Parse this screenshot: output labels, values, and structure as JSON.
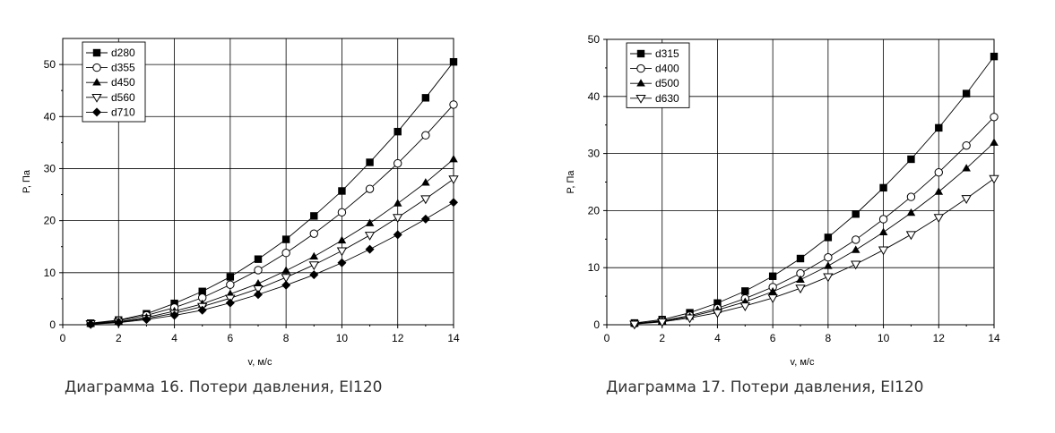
{
  "captions": {
    "chart16": "Диаграмма 16. Потери давления, EI120",
    "chart17": "Диаграмма 17. Потери давления, EI120"
  },
  "colors": {
    "line": "#000000",
    "grid": "#000000",
    "caption": "#333333"
  },
  "chart_data": [
    {
      "type": "line",
      "xlabel": "v, м/с",
      "ylabel": "P, Па",
      "xlim": [
        0,
        14
      ],
      "ylim": [
        0,
        55
      ],
      "xticks": [
        0,
        2,
        4,
        6,
        8,
        10,
        12,
        14
      ],
      "yticks": [
        0,
        10,
        20,
        30,
        40,
        50
      ],
      "grid": true,
      "legend_position": "top-left",
      "x": [
        1,
        2,
        3,
        4,
        5,
        6,
        7,
        8,
        9,
        10,
        11,
        12,
        13,
        14
      ],
      "series": [
        {
          "name": "d280",
          "marker": "square-filled",
          "values": [
            0.3,
            0.9,
            2.1,
            4.1,
            6.4,
            9.2,
            12.6,
            16.4,
            20.9,
            25.7,
            31.2,
            37.1,
            43.6,
            50.5
          ]
        },
        {
          "name": "d355",
          "marker": "circle-open",
          "values": [
            0.2,
            0.8,
            1.8,
            3.3,
            5.2,
            7.7,
            10.5,
            13.8,
            17.5,
            21.6,
            26.1,
            31.0,
            36.4,
            42.3
          ]
        },
        {
          "name": "d450",
          "marker": "triangle-up-filled",
          "values": [
            0.2,
            0.6,
            1.4,
            2.6,
            4.0,
            5.9,
            7.9,
            10.4,
            13.1,
            16.2,
            19.5,
            23.3,
            27.3,
            31.8
          ]
        },
        {
          "name": "d560",
          "marker": "triangle-down-open",
          "values": [
            0.2,
            0.5,
            1.2,
            2.2,
            3.5,
            5.1,
            6.9,
            9.1,
            11.5,
            14.2,
            17.2,
            20.6,
            24.2,
            28.0
          ]
        },
        {
          "name": "d710",
          "marker": "diamond-filled",
          "values": [
            0.1,
            0.4,
            1.0,
            1.8,
            2.8,
            4.2,
            5.8,
            7.6,
            9.6,
            11.9,
            14.5,
            17.3,
            20.3,
            23.5
          ]
        }
      ]
    },
    {
      "type": "line",
      "xlabel": "v, м/с",
      "ylabel": "P, Па",
      "xlim": [
        0,
        14
      ],
      "ylim": [
        0,
        50
      ],
      "xticks": [
        0,
        2,
        4,
        6,
        8,
        10,
        12,
        14
      ],
      "yticks": [
        0,
        10,
        20,
        30,
        40,
        50
      ],
      "grid": true,
      "legend_position": "top-left",
      "x": [
        1,
        2,
        3,
        4,
        5,
        6,
        7,
        8,
        9,
        10,
        11,
        12,
        13,
        14
      ],
      "series": [
        {
          "name": "d315",
          "marker": "square-filled",
          "values": [
            0.3,
            0.9,
            2.1,
            3.8,
            5.9,
            8.5,
            11.6,
            15.3,
            19.4,
            24.0,
            29.0,
            34.5,
            40.5,
            47.0
          ]
        },
        {
          "name": "d400",
          "marker": "circle-open",
          "values": [
            0.2,
            0.7,
            1.6,
            2.9,
            4.6,
            6.6,
            9.0,
            11.8,
            14.9,
            18.5,
            22.4,
            26.7,
            31.4,
            36.4
          ]
        },
        {
          "name": "d500",
          "marker": "triangle-up-filled",
          "values": [
            0.2,
            0.6,
            1.4,
            2.6,
            4.0,
            5.8,
            7.9,
            10.3,
            13.1,
            16.2,
            19.6,
            23.3,
            27.4,
            31.9
          ]
        },
        {
          "name": "d630",
          "marker": "triangle-down-open",
          "values": [
            0.1,
            0.5,
            1.2,
            2.1,
            3.3,
            4.7,
            6.4,
            8.4,
            10.6,
            13.1,
            15.8,
            18.8,
            22.1,
            25.6
          ]
        }
      ]
    }
  ]
}
